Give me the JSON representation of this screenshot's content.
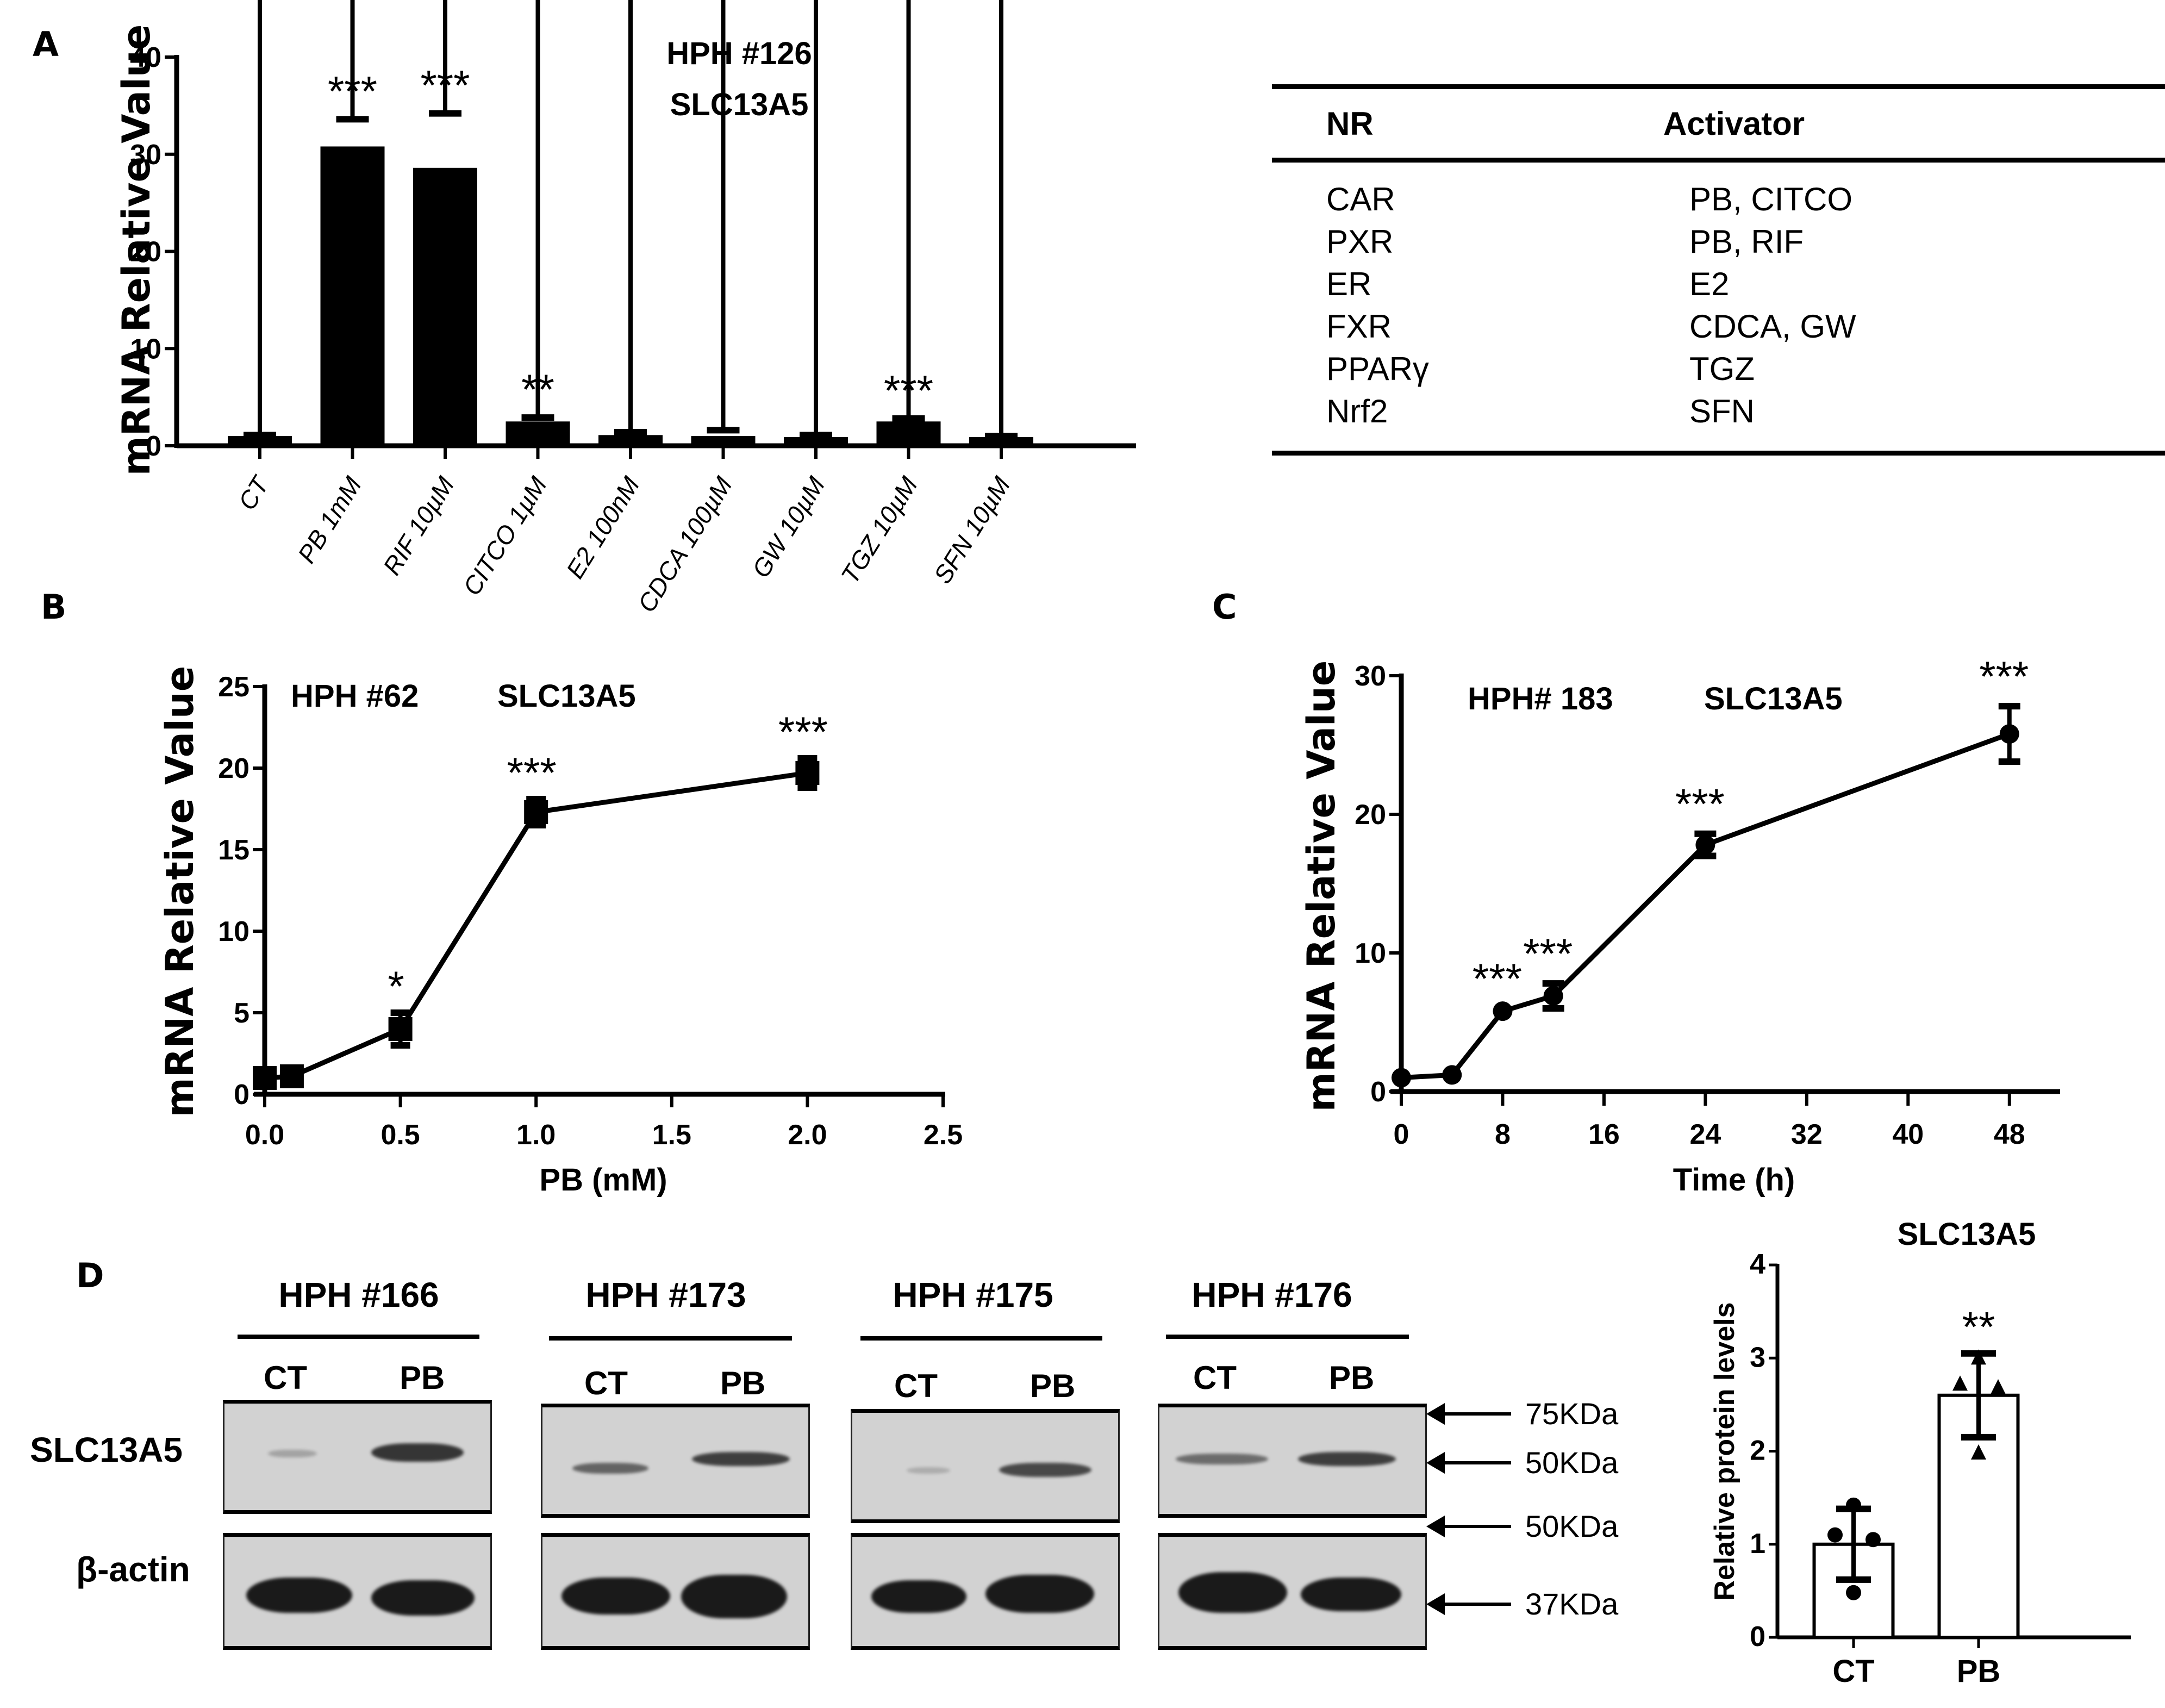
{
  "panels": {
    "A": {
      "letter": "A"
    },
    "B": {
      "letter": "B"
    },
    "C": {
      "letter": "C"
    },
    "D": {
      "letter": "D"
    }
  },
  "chart_data": [
    {
      "id": "A",
      "type": "bar",
      "title": "HPH #126",
      "subtitle": "SLC13A5",
      "xlabel": "",
      "ylabel": "mRNA Relative Value",
      "ylim": [
        0,
        40
      ],
      "yticks": [
        0,
        10,
        20,
        30,
        40
      ],
      "categories": [
        "CT",
        "PB 1mM",
        "RIF 10µM",
        "CITCO 1µM",
        "E2 100nM",
        "CDCA 100µM",
        "GW 10µM",
        "TGZ 10µM",
        "SFN 10µM"
      ],
      "values": [
        1.0,
        30.8,
        28.6,
        2.5,
        1.1,
        1.0,
        0.9,
        2.5,
        0.9
      ],
      "errors": [
        0.1,
        2.8,
        5.6,
        0.4,
        0.3,
        0.6,
        0.2,
        0.3,
        0.1
      ],
      "significance": [
        "",
        "***",
        "***",
        "**",
        "",
        "",
        "",
        "***",
        ""
      ],
      "grid": false,
      "legend": null
    },
    {
      "id": "B",
      "type": "line",
      "title": "HPH #62",
      "subtitle": "SLC13A5",
      "xlabel": "PB (mM)",
      "ylabel": "mRNA Relative Value",
      "xlim": [
        0,
        2.5
      ],
      "ylim": [
        0,
        25
      ],
      "xticks": [
        "0.0",
        "0.5",
        "1.0",
        "1.5",
        "2.0",
        "2.5"
      ],
      "yticks": [
        0,
        5,
        10,
        15,
        20,
        25
      ],
      "marker": "square",
      "x": [
        0,
        0.1,
        0.5,
        1.0,
        2.0
      ],
      "values": [
        1.0,
        1.1,
        4.0,
        17.3,
        19.7
      ],
      "errors": [
        0.1,
        0.1,
        1.0,
        0.8,
        0.9
      ],
      "significance": [
        "",
        "",
        "*",
        "***",
        "***"
      ],
      "grid": false
    },
    {
      "id": "C",
      "type": "line",
      "title": "HPH# 183",
      "subtitle": "SLC13A5",
      "xlabel": "Time (h)",
      "ylabel": "mRNA Relative Value",
      "xlim": [
        0,
        52
      ],
      "ylim": [
        0,
        30
      ],
      "xticks": [
        "0",
        "8",
        "16",
        "24",
        "32",
        "40",
        "48"
      ],
      "yticks": [
        0,
        10,
        20,
        30
      ],
      "marker": "circle",
      "x": [
        0,
        4,
        8,
        12,
        24,
        48
      ],
      "values": [
        1.0,
        1.2,
        5.8,
        6.9,
        17.8,
        25.8
      ],
      "errors": [
        0.1,
        0.1,
        0.2,
        0.9,
        0.8,
        2.0
      ],
      "significance": [
        "",
        "",
        "***",
        "***",
        "***",
        "***"
      ],
      "grid": false
    },
    {
      "id": "D-quant",
      "type": "bar",
      "title": "SLC13A5",
      "xlabel": "",
      "ylabel": "Relative protein levels",
      "ylim": [
        0,
        4
      ],
      "yticks": [
        0,
        1,
        2,
        3,
        4
      ],
      "categories": [
        "CT",
        "PB"
      ],
      "values": [
        1.0,
        2.6
      ],
      "errors": [
        0.38,
        0.45
      ],
      "points": [
        [
          1.42,
          1.1,
          1.05,
          0.48
        ],
        [
          3.0,
          2.72,
          2.68,
          1.98
        ]
      ],
      "point_markers": [
        "circle",
        "triangle"
      ],
      "significance": [
        "",
        "**"
      ],
      "fill": "#ffffff",
      "grid": false
    },
    {
      "id": "A-table",
      "type": "table",
      "columns": [
        "NR",
        "Activator"
      ],
      "rows": [
        [
          "CAR",
          "PB, CITCO"
        ],
        [
          "PXR",
          "PB, RIF"
        ],
        [
          "ER",
          "E2"
        ],
        [
          "FXR",
          "CDCA, GW"
        ],
        [
          "PPARγ",
          "TGZ"
        ],
        [
          "Nrf2",
          "SFN"
        ]
      ]
    }
  ],
  "table": {
    "header": {
      "nr": "NR",
      "activator": "Activator"
    },
    "rows": [
      {
        "nr": "CAR",
        "activator": "PB, CITCO"
      },
      {
        "nr": "PXR",
        "activator": "PB, RIF"
      },
      {
        "nr": "ER",
        "activator": "E2"
      },
      {
        "nr": "FXR",
        "activator": "CDCA, GW"
      },
      {
        "nr": "PPARγ",
        "activator": "TGZ"
      },
      {
        "nr": "Nrf2",
        "activator": "SFN"
      }
    ]
  },
  "western": {
    "donors": [
      "HPH #166",
      "HPH #173",
      "HPH #175",
      "HPH #176"
    ],
    "lanes": [
      "CT",
      "PB"
    ],
    "row_labels": {
      "target": "SLC13A5",
      "loading": "β-actin"
    },
    "markers": [
      "75KDa",
      "50KDa",
      "50KDa",
      "37KDa"
    ]
  }
}
